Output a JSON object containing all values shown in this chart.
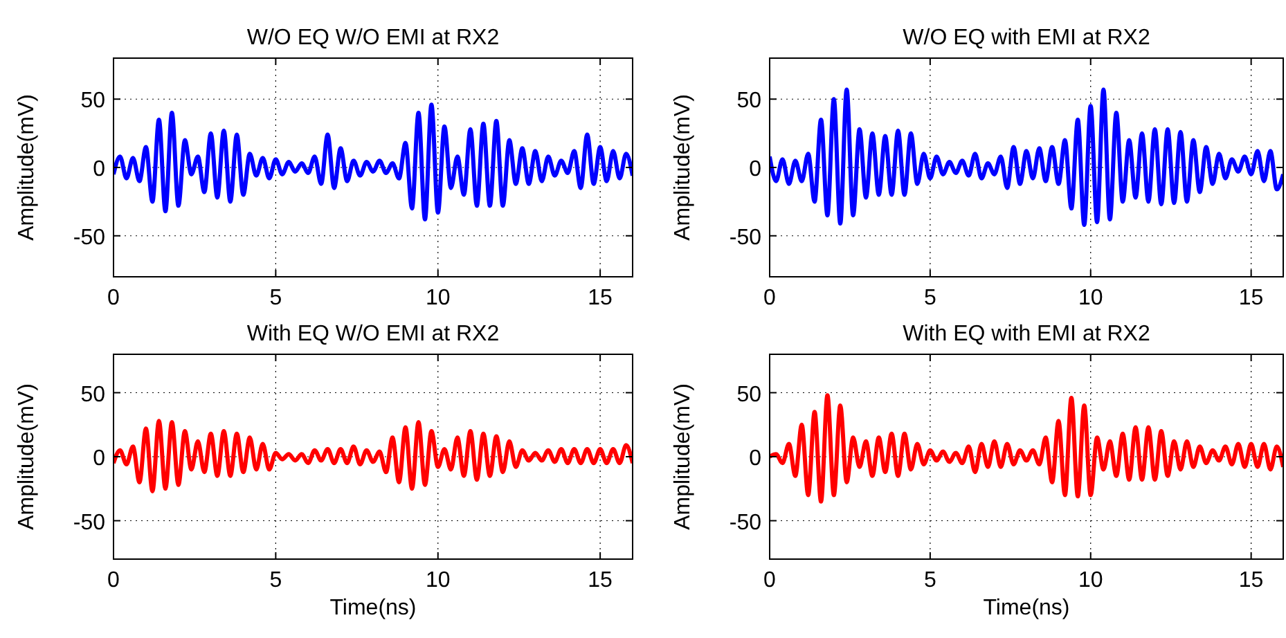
{
  "chart_data": [
    {
      "type": "line",
      "title": "W/O EQ W/O EMI at RX2",
      "ylabel": "Amplitude(mV)",
      "xlim": [
        0,
        16
      ],
      "xticks": [
        0,
        5,
        10,
        15
      ],
      "ylim": [
        -80,
        80
      ],
      "yticks": [
        -50,
        0,
        50
      ],
      "grid": true,
      "line_style": "solid",
      "x": [
        0,
        0.2,
        0.4,
        0.6,
        0.8,
        1,
        1.2,
        1.4,
        1.6,
        1.8,
        2,
        2.2,
        2.4,
        2.6,
        2.8,
        3,
        3.2,
        3.4,
        3.6,
        3.8,
        4,
        4.2,
        4.4,
        4.6,
        4.8,
        5,
        5.2,
        5.4,
        5.6,
        5.8,
        6,
        6.2,
        6.4,
        6.6,
        6.8,
        7,
        7.2,
        7.4,
        7.6,
        7.8,
        8,
        8.2,
        8.4,
        8.6,
        8.8,
        9,
        9.2,
        9.4,
        9.6,
        9.8,
        10,
        10.2,
        10.4,
        10.6,
        10.8,
        11,
        11.2,
        11.4,
        11.6,
        11.8,
        12,
        12.2,
        12.4,
        12.6,
        12.8,
        13,
        13.2,
        13.4,
        13.6,
        13.8,
        14,
        14.2,
        14.4,
        14.6,
        14.8,
        15,
        15.2,
        15.4,
        15.6,
        15.8,
        16
      ],
      "series": [
        {
          "color": "#0000ff",
          "values": [
            -5,
            8,
            -8,
            7,
            -10,
            15,
            -25,
            35,
            -32,
            40,
            -28,
            20,
            -5,
            8,
            -18,
            25,
            -22,
            27,
            -25,
            24,
            -20,
            10,
            -6,
            7,
            -8,
            6,
            -5,
            4,
            -3,
            3,
            -4,
            8,
            -12,
            24,
            -15,
            14,
            -10,
            5,
            -6,
            4,
            -3,
            5,
            -4,
            3,
            -8,
            18,
            -30,
            40,
            -38,
            46,
            -33,
            30,
            -15,
            8,
            -20,
            28,
            -28,
            32,
            -28,
            34,
            -28,
            20,
            -12,
            14,
            -12,
            12,
            -10,
            8,
            -6,
            5,
            -4,
            12,
            -15,
            24,
            -12,
            15,
            -10,
            12,
            -8,
            10,
            -6
          ]
        }
      ]
    },
    {
      "type": "line",
      "title": "W/O EQ with EMI at RX2",
      "ylabel": "Amplitude(mV)",
      "xlim": [
        0,
        16
      ],
      "xticks": [
        0,
        5,
        10,
        15
      ],
      "ylim": [
        -80,
        80
      ],
      "yticks": [
        -50,
        0,
        50
      ],
      "grid": true,
      "line_style": "solid",
      "x": [
        0,
        0.2,
        0.4,
        0.6,
        0.8,
        1,
        1.2,
        1.4,
        1.6,
        1.8,
        2,
        2.2,
        2.4,
        2.6,
        2.8,
        3,
        3.2,
        3.4,
        3.6,
        3.8,
        4,
        4.2,
        4.4,
        4.6,
        4.8,
        5,
        5.2,
        5.4,
        5.6,
        5.8,
        6,
        6.2,
        6.4,
        6.6,
        6.8,
        7,
        7.2,
        7.4,
        7.6,
        7.8,
        8,
        8.2,
        8.4,
        8.6,
        8.8,
        9,
        9.2,
        9.4,
        9.6,
        9.8,
        10,
        10.2,
        10.4,
        10.6,
        10.8,
        11,
        11.2,
        11.4,
        11.6,
        11.8,
        12,
        12.2,
        12.4,
        12.6,
        12.8,
        13,
        13.2,
        13.4,
        13.6,
        13.8,
        14,
        14.2,
        14.4,
        14.6,
        14.8,
        15,
        15.2,
        15.4,
        15.6,
        15.8,
        16
      ],
      "series": [
        {
          "color": "#0000ff",
          "values": [
            8,
            -10,
            6,
            -12,
            5,
            -10,
            10,
            -25,
            35,
            -35,
            50,
            -41,
            57,
            -35,
            28,
            -22,
            25,
            -20,
            23,
            -20,
            27,
            -20,
            25,
            -12,
            10,
            -8,
            8,
            -5,
            4,
            -4,
            5,
            -6,
            10,
            -8,
            3,
            -5,
            8,
            -15,
            15,
            -12,
            12,
            -8,
            14,
            -10,
            15,
            -12,
            20,
            -30,
            35,
            -42,
            45,
            -40,
            57,
            -38,
            40,
            -25,
            20,
            -22,
            25,
            -25,
            28,
            -27,
            28,
            -26,
            26,
            -25,
            20,
            -18,
            15,
            -12,
            10,
            -8,
            6,
            -3,
            8,
            -5,
            12,
            -10,
            12,
            -16,
            -5
          ]
        }
      ]
    },
    {
      "type": "line",
      "title": "With EQ W/O EMI at RX2",
      "xlabel": "Time(ns)",
      "ylabel": "Amplitude(mV)",
      "xlim": [
        0,
        16
      ],
      "xticks": [
        0,
        5,
        10,
        15
      ],
      "ylim": [
        -80,
        80
      ],
      "yticks": [
        -50,
        0,
        50
      ],
      "grid": true,
      "line_style": "solid",
      "x": [
        0,
        0.2,
        0.4,
        0.6,
        0.8,
        1,
        1.2,
        1.4,
        1.6,
        1.8,
        2,
        2.2,
        2.4,
        2.6,
        2.8,
        3,
        3.2,
        3.4,
        3.6,
        3.8,
        4,
        4.2,
        4.4,
        4.6,
        4.8,
        5,
        5.2,
        5.4,
        5.6,
        5.8,
        6,
        6.2,
        6.4,
        6.6,
        6.8,
        7,
        7.2,
        7.4,
        7.6,
        7.8,
        8,
        8.2,
        8.4,
        8.6,
        8.8,
        9,
        9.2,
        9.4,
        9.6,
        9.8,
        10,
        10.2,
        10.4,
        10.6,
        10.8,
        11,
        11.2,
        11.4,
        11.6,
        11.8,
        12,
        12.2,
        12.4,
        12.6,
        12.8,
        13,
        13.2,
        13.4,
        13.6,
        13.8,
        14,
        14.2,
        14.4,
        14.6,
        14.8,
        15,
        15.2,
        15.4,
        15.6,
        15.8,
        16
      ],
      "series": [
        {
          "color": "#ff0000",
          "values": [
            -5,
            5,
            -6,
            8,
            -20,
            22,
            -27,
            28,
            -25,
            27,
            -22,
            20,
            -10,
            12,
            -12,
            18,
            -15,
            20,
            -15,
            18,
            -12,
            15,
            -10,
            10,
            -10,
            3,
            -2,
            2,
            -3,
            2,
            -5,
            5,
            -3,
            6,
            -5,
            6,
            -5,
            8,
            -6,
            5,
            -4,
            4,
            -12,
            15,
            -20,
            23,
            -25,
            27,
            -22,
            20,
            -8,
            6,
            -10,
            15,
            -15,
            20,
            -18,
            18,
            -15,
            16,
            -12,
            12,
            -8,
            5,
            -3,
            3,
            -3,
            5,
            -4,
            6,
            -5,
            6,
            -5,
            6,
            -5,
            6,
            -5,
            6,
            -5,
            9,
            -5
          ]
        }
      ]
    },
    {
      "type": "line",
      "title": "With EQ with EMI at RX2",
      "xlabel": "Time(ns)",
      "ylabel": "Amplitude(mV)",
      "xlim": [
        0,
        16
      ],
      "xticks": [
        0,
        5,
        10,
        15
      ],
      "ylim": [
        -80,
        80
      ],
      "yticks": [
        -50,
        0,
        50
      ],
      "grid": true,
      "line_style": "solid",
      "x": [
        0,
        0.2,
        0.4,
        0.6,
        0.8,
        1,
        1.2,
        1.4,
        1.6,
        1.8,
        2,
        2.2,
        2.4,
        2.6,
        2.8,
        3,
        3.2,
        3.4,
        3.6,
        3.8,
        4,
        4.2,
        4.4,
        4.6,
        4.8,
        5,
        5.2,
        5.4,
        5.6,
        5.8,
        6,
        6.2,
        6.4,
        6.6,
        6.8,
        7,
        7.2,
        7.4,
        7.6,
        7.8,
        8,
        8.2,
        8.4,
        8.6,
        8.8,
        9,
        9.2,
        9.4,
        9.6,
        9.8,
        10,
        10.2,
        10.4,
        10.6,
        10.8,
        11,
        11.2,
        11.4,
        11.6,
        11.8,
        12,
        12.2,
        12.4,
        12.6,
        12.8,
        13,
        13.2,
        13.4,
        13.6,
        13.8,
        14,
        14.2,
        14.4,
        14.6,
        14.8,
        15,
        15.2,
        15.4,
        15.6,
        15.8,
        16
      ],
      "series": [
        {
          "color": "#ff0000",
          "values": [
            0,
            2,
            -5,
            10,
            -15,
            25,
            -30,
            35,
            -35,
            48,
            -30,
            40,
            -20,
            15,
            -8,
            12,
            -15,
            15,
            -12,
            18,
            -15,
            18,
            -10,
            10,
            -6,
            5,
            -3,
            4,
            -4,
            3,
            -5,
            8,
            -12,
            10,
            -8,
            12,
            -8,
            10,
            -6,
            5,
            -3,
            5,
            -6,
            15,
            -20,
            28,
            -30,
            46,
            -31,
            40,
            -30,
            15,
            -10,
            12,
            -15,
            18,
            -18,
            23,
            -18,
            23,
            -18,
            20,
            -15,
            12,
            -10,
            12,
            -8,
            8,
            -5,
            5,
            -3,
            8,
            -6,
            10,
            -8,
            10,
            -8,
            10,
            -10,
            8,
            -8
          ]
        }
      ]
    }
  ]
}
